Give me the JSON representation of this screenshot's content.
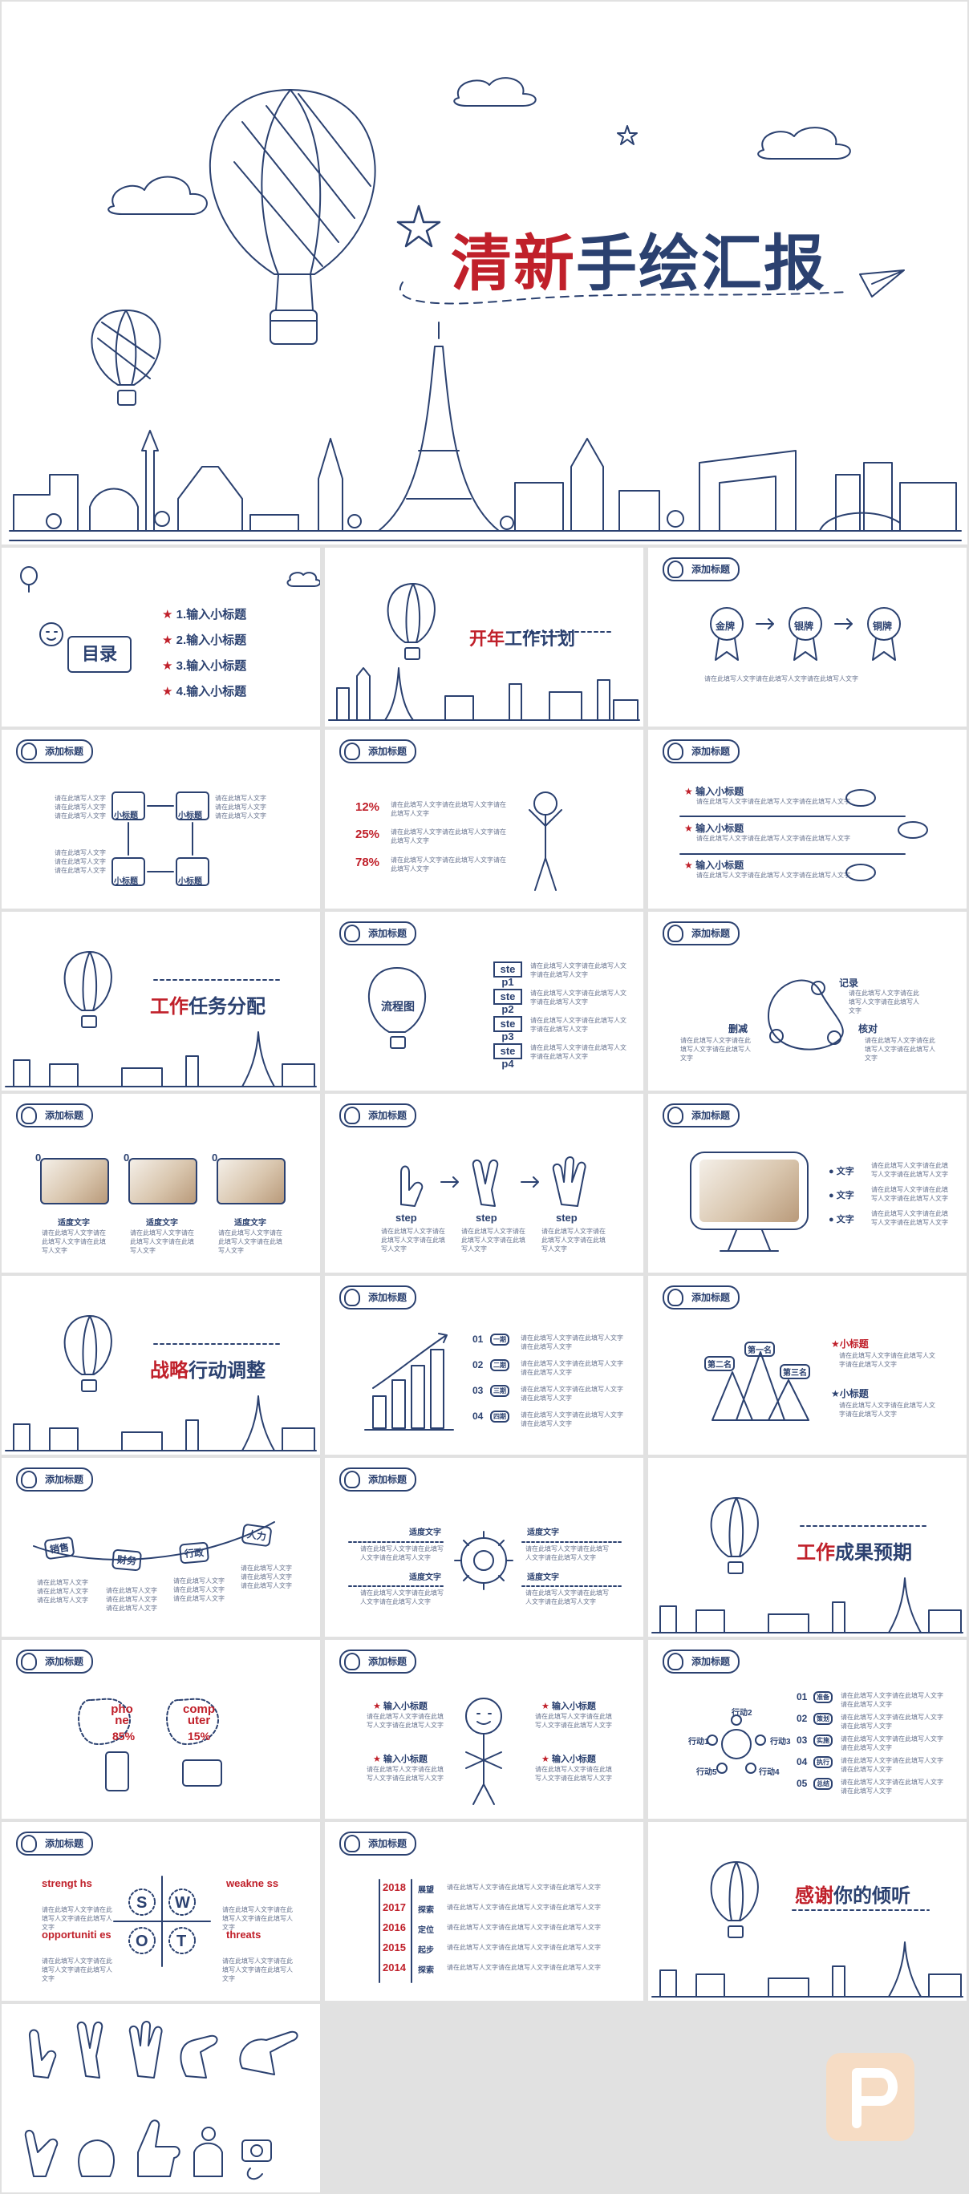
{
  "cover": {
    "title_red": "清新",
    "title_navy": "手绘汇报"
  },
  "tag_label": "添加标题",
  "toc": {
    "heading": "目录",
    "items": [
      "1.输入小标题",
      "2.输入小标题",
      "3.输入小标题",
      "4.输入小标题"
    ]
  },
  "section_plan": {
    "red": "开年",
    "navy": "工作计划"
  },
  "medals": [
    "金牌",
    "银牌",
    "铜牌"
  ],
  "cycle_labels": [
    "小标题",
    "小标题",
    "小标题",
    "小标题"
  ],
  "stats": [
    "12%",
    "25%",
    "78%"
  ],
  "sub_items": [
    "输入小标题",
    "输入小标题",
    "输入小标题"
  ],
  "section_task": {
    "red": "工作",
    "navy": "任务分配"
  },
  "flow": {
    "label": "流程图",
    "steps": [
      "ste p1",
      "ste p2",
      "ste p3",
      "ste p4"
    ]
  },
  "triangle": {
    "top": "记录",
    "left": "删减",
    "right": "核对"
  },
  "photos": {
    "nums": [
      "0",
      "0",
      "0"
    ],
    "labels": [
      "适度文字",
      "适度文字",
      "适度文字"
    ]
  },
  "hands": {
    "labels": [
      "step",
      "step",
      "step"
    ]
  },
  "kitten": {
    "labels": [
      "文字",
      "文字",
      "文字"
    ]
  },
  "section_strategy": {
    "red": "战略",
    "navy": "行动调整"
  },
  "bars": {
    "nums": [
      "01",
      "02",
      "03",
      "04"
    ],
    "tags": [
      "一期",
      "二期",
      "三期",
      "四期"
    ]
  },
  "podium": {
    "first": "第一名",
    "second": "第二名",
    "third": "第三名",
    "side": [
      "小标题",
      "小标题"
    ]
  },
  "rope": [
    "销售",
    "财务",
    "行政",
    "人力"
  ],
  "gear": {
    "labels": [
      "适度文字",
      "适度文字",
      "适度文字",
      "适度文字"
    ]
  },
  "section_result": {
    "red": "工作",
    "navy": "成果预期"
  },
  "devices": {
    "phone": "pho ne",
    "phone_val": "85%",
    "comp": "comp uter",
    "comp_val": "15%"
  },
  "person": {
    "items": [
      "输入小标题",
      "输入小标题",
      "输入小标题",
      "输入小标题"
    ]
  },
  "actions": {
    "items": [
      "行动1",
      "行动2",
      "行动3",
      "行动4",
      "行动5"
    ],
    "nums": [
      "01",
      "02",
      "03",
      "04",
      "05"
    ],
    "tags": [
      "准备",
      "策划",
      "实施",
      "执行",
      "总结"
    ]
  },
  "swot": {
    "letters": [
      "S",
      "W",
      "O",
      "T"
    ],
    "labels": [
      "strengt hs",
      "weakne ss",
      "opportuniti es",
      "threats"
    ]
  },
  "timeline": {
    "years": [
      "2018",
      "2017",
      "2016",
      "2015",
      "2014"
    ],
    "tags": [
      "展望",
      "探索",
      "定位",
      "起步",
      "探索"
    ]
  },
  "thanks": {
    "red": "感谢",
    "navy": "你的倾听"
  },
  "placeholder_line": "请在此填写人文字请在此填写人文字请在此填写人文字",
  "colors": {
    "navy": "#2b4170",
    "red": "#c0202a",
    "gap": "#e1e1e1",
    "logo": "#f0c6a0"
  }
}
